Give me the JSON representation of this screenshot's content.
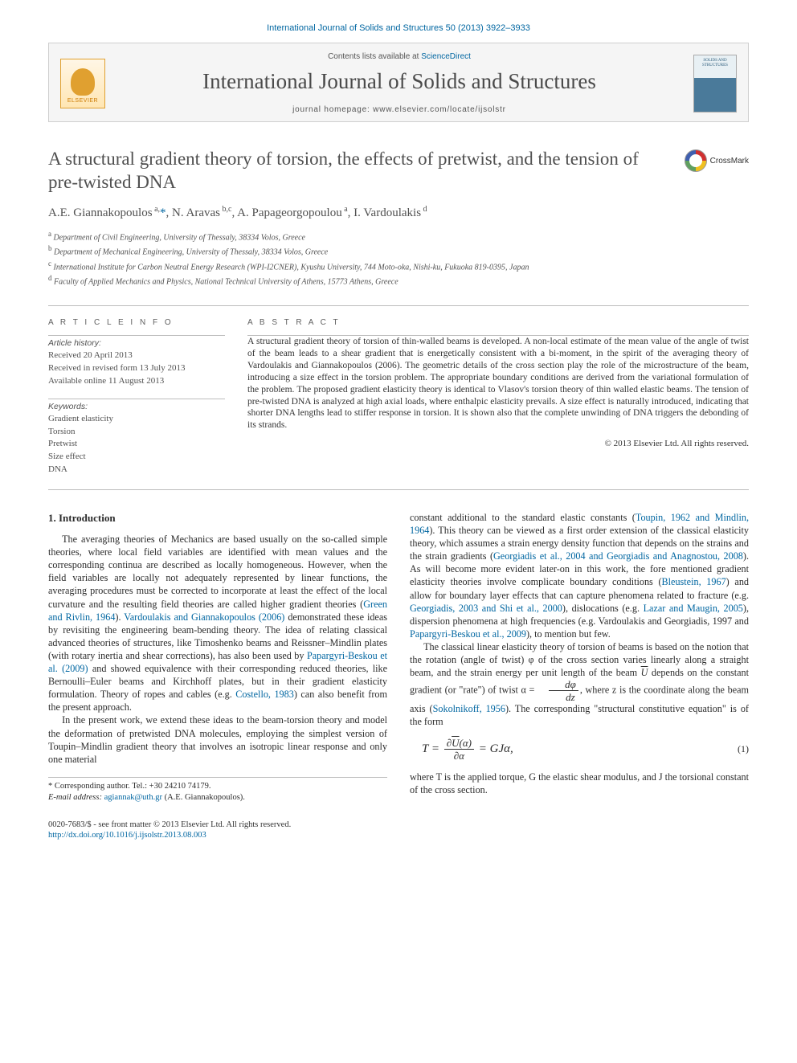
{
  "journal_ref": "International Journal of Solids and Structures 50 (2013) 3922–3933",
  "masthead": {
    "publisher": "ELSEVIER",
    "contents_prefix": "Contents lists available at ",
    "contents_link": "ScienceDirect",
    "journal_name": "International Journal of Solids and Structures",
    "homepage_prefix": "journal homepage: ",
    "homepage_url": "www.elsevier.com/locate/ijsolstr",
    "cover_text": "SOLIDS AND STRUCTURES"
  },
  "crossmark_label": "CrossMark",
  "title": "A structural gradient theory of torsion, the effects of pretwist, and the tension of pre-twisted DNA",
  "authors_html": "A.E. Giannakopoulos<sup> a,</sup><span class='link'>*</span>, N. Aravas<sup> b,c</sup>, A. Papageorgopoulou<sup> a</sup>, I. Vardoulakis<sup> d</sup>",
  "affiliations": {
    "a": "Department of Civil Engineering, University of Thessaly, 38334 Volos, Greece",
    "b": "Department of Mechanical Engineering, University of Thessaly, 38334 Volos, Greece",
    "c": "International Institute for Carbon Neutral Energy Research (WPI-I2CNER), Kyushu University, 744 Moto-oka, Nishi-ku, Fukuoka 819-0395, Japan",
    "d": "Faculty of Applied Mechanics and Physics, National Technical University of Athens, 15773 Athens, Greece"
  },
  "info": {
    "heading": "A R T I C L E   I N F O",
    "history_label": "Article history:",
    "received": "Received 20 April 2013",
    "revised": "Received in revised form 13 July 2013",
    "online": "Available online 11 August 2013",
    "keywords_label": "Keywords:",
    "keywords": [
      "Gradient elasticity",
      "Torsion",
      "Pretwist",
      "Size effect",
      "DNA"
    ]
  },
  "abstract": {
    "heading": "A B S T R A C T",
    "text": "A structural gradient theory of torsion of thin-walled beams is developed. A non-local estimate of the mean value of the angle of twist of the beam leads to a shear gradient that is energetically consistent with a bi-moment, in the spirit of the averaging theory of Vardoulakis and Giannakopoulos (2006). The geometric details of the cross section play the role of the microstructure of the beam, introducing a size effect in the torsion problem. The appropriate boundary conditions are derived from the variational formulation of the problem. The proposed gradient elasticity theory is identical to Vlasov's torsion theory of thin walled elastic beams. The tension of pre-twisted DNA is analyzed at high axial loads, where enthalpic elasticity prevails. A size effect is naturally introduced, indicating that shorter DNA lengths lead to stiffer response in torsion. It is shown also that the complete unwinding of DNA triggers the debonding of its strands.",
    "copyright": "© 2013 Elsevier Ltd. All rights reserved."
  },
  "section1": {
    "heading": "1. Introduction",
    "p1": "The averaging theories of Mechanics are based usually on the so-called simple theories, where local field variables are identified with mean values and the corresponding continua are described as locally homogeneous. However, when the field variables are locally not adequately represented by linear functions, the averaging procedures must be corrected to incorporate at least the effect of the local curvature and the resulting field theories are called higher gradient theories (",
    "p1_ref1": "Green and Rivlin, 1964",
    "p1_mid1": "). ",
    "p1_ref2": "Vardoulakis and Giannakopoulos (2006)",
    "p1_mid2": " demonstrated these ideas by revisiting the engineering beam-bending theory. The idea of relating classical advanced theories of structures, like Timoshenko beams and Reissner–Mindlin plates (with rotary inertia and shear corrections), has also been used by ",
    "p1_ref3": "Papargyri-Beskou et al. (2009)",
    "p1_mid3": " and showed equivalence with their corresponding reduced theories, like Bernoulli–Euler beams and Kirchhoff plates, but in their gradient elasticity formulation. Theory of ropes and cables (e.g. ",
    "p1_ref4": "Costello, 1983",
    "p1_end": ") can also benefit from the present approach.",
    "p2": "In the present work, we extend these ideas to the beam-torsion theory and model the deformation of pretwisted DNA molecules, employing the simplest version of Toupin–Mindlin gradient theory that involves an isotropic linear response and only one material",
    "p3a": "constant additional to the standard elastic constants (",
    "p3_ref1": "Toupin, 1962 and Mindlin, 1964",
    "p3b": "). This theory can be viewed as a first order extension of the classical elasticity theory, which assumes a strain energy density function that depends on the strains and the strain gradients (",
    "p3_ref2": "Georgiadis et al., 2004 and Georgiadis and Anagnostou, 2008",
    "p3c": "). As will become more evident later-on in this work, the fore mentioned gradient elasticity theories involve complicate boundary conditions (",
    "p3_ref3": "Bleustein, 1967",
    "p3d": ") and allow for boundary layer effects that can capture phenomena related to fracture (e.g. ",
    "p3_ref4": "Georgiadis, 2003 and Shi et al., 2000",
    "p3e": "), dislocations (e.g. ",
    "p3_ref5": "Lazar and Maugin, 2005",
    "p3f": "), dispersion phenomena at high frequencies (e.g. Vardoulakis and Georgiadis, 1997 and ",
    "p3_ref6": "Papargyri-Beskou et al., 2009",
    "p3g": "), to mention but few.",
    "p4a": "The classical linear elasticity theory of torsion of beams is based on the notion that the rotation (angle of twist) φ of the cross section varies linearly along a straight beam, and the strain energy per unit length of the beam ",
    "p4_ubar": "U",
    "p4b": " depends on the constant gradient (or \"rate\") of twist α = ",
    "p4c": ", where z is the coordinate along the beam axis (",
    "p4_ref1": "Sokolnikoff, 1956",
    "p4d": "). The corresponding \"structural constitutive equation\" is of the form",
    "eq1_lhs": "T =",
    "eq1_num": "∂U(α)",
    "eq1_den": "∂α",
    "eq1_rhs": "= GJα,",
    "eq1_no": "(1)",
    "p5": "where T is the applied torque, G the elastic shear modulus, and J the torsional constant of the cross section.",
    "frac_small_num": "dφ",
    "frac_small_den": "dz"
  },
  "footnote": {
    "corr": "* Corresponding author. Tel.: +30 24210 74179.",
    "email_label": "E-mail address:",
    "email": "agiannak@uth.gr",
    "email_paren": "(A.E. Giannakopoulos)."
  },
  "footer": {
    "issn_line": "0020-7683/$ - see front matter © 2013 Elsevier Ltd. All rights reserved.",
    "doi": "http://dx.doi.org/10.1016/j.ijsolstr.2013.08.003"
  },
  "colors": {
    "link": "#0066a1",
    "text": "#333333",
    "rule": "#bdbdbd",
    "masthead_bg": "#f5f5f5"
  },
  "typography": {
    "title_fontsize_pt": 17,
    "body_fontsize_pt": 9,
    "journal_name_fontsize_pt": 20,
    "font_family": "Times New Roman / Charis-like serif"
  }
}
